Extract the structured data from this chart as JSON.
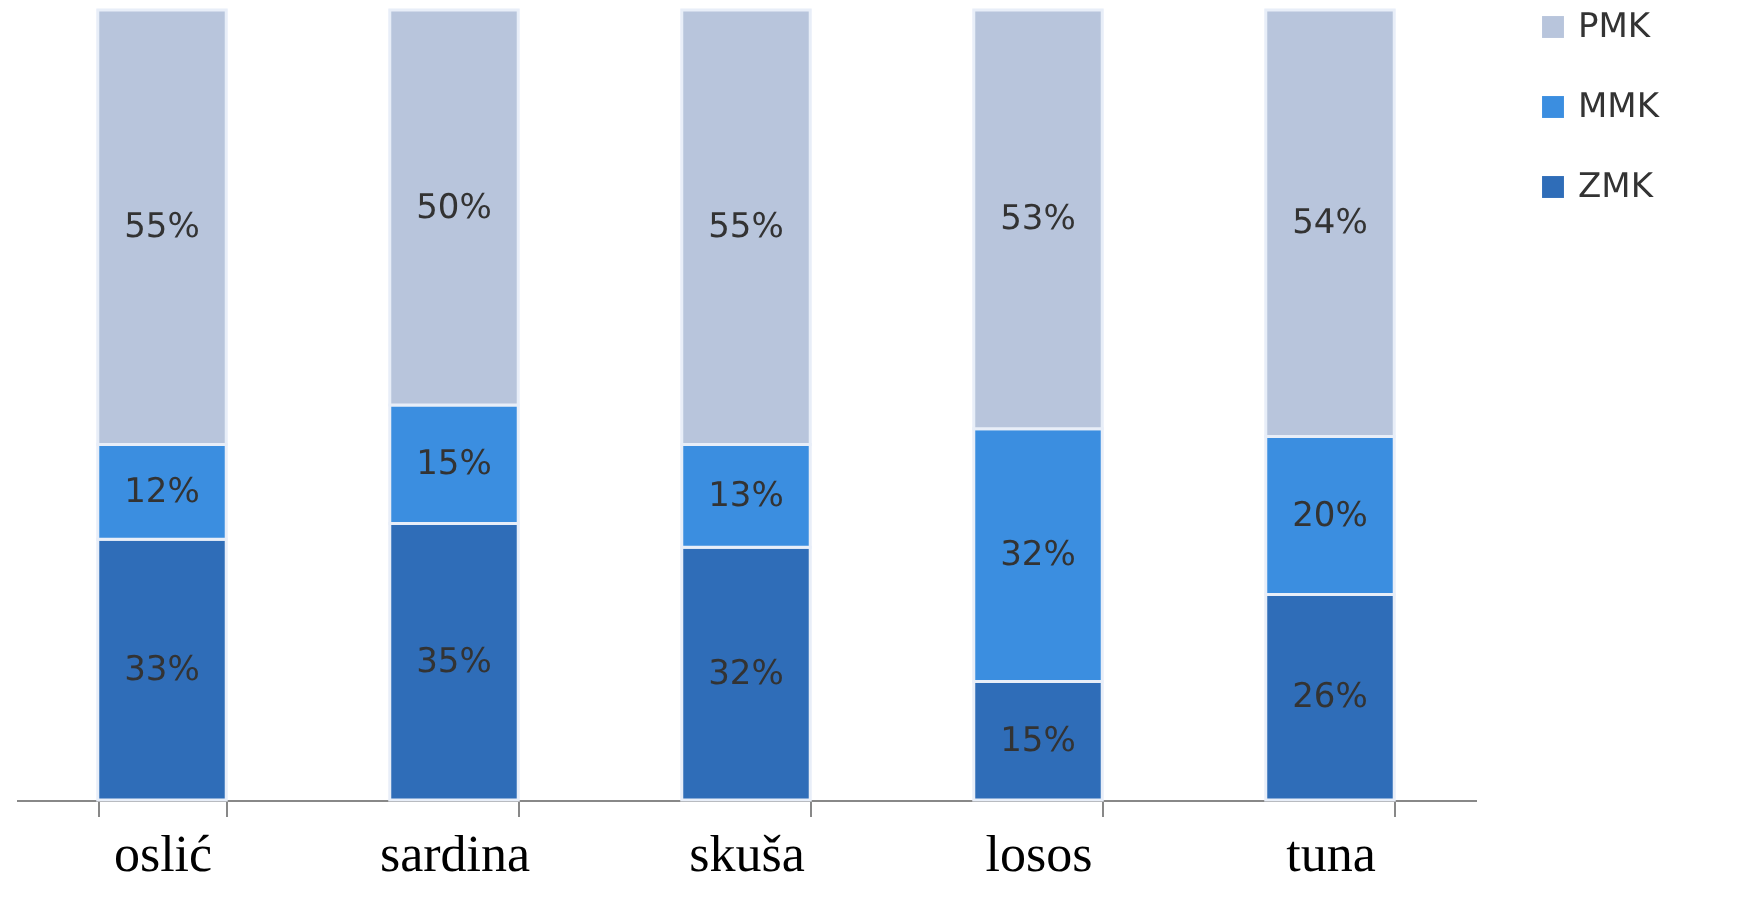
{
  "chart_data": {
    "type": "bar",
    "stacked": true,
    "categories": [
      "oslić",
      "sardina",
      "skuša",
      "losos",
      "tuna"
    ],
    "series": [
      {
        "name": "ZMK",
        "color": "#2f6db8",
        "values": [
          33,
          35,
          32,
          15,
          26
        ],
        "value_labels": [
          "33%",
          "35%",
          "32%",
          "15%",
          "26%"
        ]
      },
      {
        "name": "MMK",
        "color": "#3b8ee0",
        "values": [
          12,
          15,
          13,
          32,
          20
        ],
        "value_labels": [
          "12%",
          "15%",
          "13%",
          "32%",
          "20%"
        ]
      },
      {
        "name": "PMK",
        "color": "#b8c5dc",
        "values": [
          55,
          50,
          55,
          53,
          54
        ],
        "value_labels": [
          "55%",
          "50%",
          "55%",
          "53%",
          "54%"
        ]
      }
    ],
    "legend": "right",
    "grid": false
  }
}
